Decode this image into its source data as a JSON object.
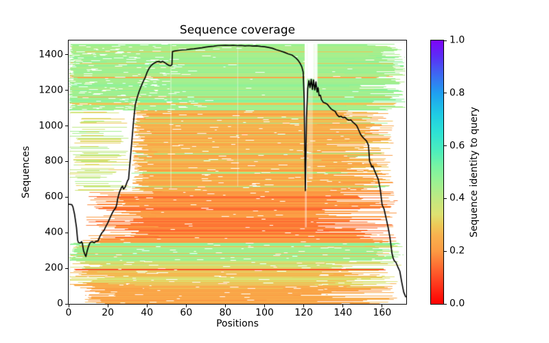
{
  "figure": {
    "title": "Sequence coverage",
    "xlabel": "Positions",
    "ylabel": "Sequences",
    "colorbar_label": "Sequence identity to query",
    "background": "#ffffff",
    "text_color": "#000000"
  },
  "chart_data": {
    "type": "line",
    "subtype": "msa-sequence-coverage-heatmap",
    "title": "Sequence coverage",
    "xlabel": "Positions",
    "ylabel": "Sequences",
    "xlim": [
      0,
      172.3
    ],
    "ylim": [
      0,
      1480
    ],
    "grid": false,
    "legend": "none",
    "n_sequences": 1456,
    "n_positions": 172,
    "xticks": [
      0,
      20,
      40,
      60,
      80,
      100,
      120,
      140,
      160
    ],
    "xtick_labels": [
      "0",
      "20",
      "40",
      "60",
      "80",
      "100",
      "120",
      "140",
      "160"
    ],
    "yticks": [
      0,
      200,
      400,
      600,
      800,
      1000,
      1200,
      1400
    ],
    "ytick_labels": [
      "0",
      "200",
      "400",
      "600",
      "800",
      "1000",
      "1200",
      "1400"
    ],
    "colorbar": {
      "label": "Sequence identity to query",
      "tick_values": [
        0.0,
        0.2,
        0.4,
        0.6,
        0.8,
        1.0
      ],
      "tick_labels": [
        "0.0",
        "0.2",
        "0.4",
        "0.6",
        "0.8",
        "1.0"
      ],
      "stops": [
        [
          0.0,
          "#ff0000"
        ],
        [
          0.08,
          "#ff3c1e"
        ],
        [
          0.16,
          "#fd7b37"
        ],
        [
          0.2,
          "#fc9a43"
        ],
        [
          0.26,
          "#f8b14e"
        ],
        [
          0.3,
          "#ecca58"
        ],
        [
          0.34,
          "#dde272"
        ],
        [
          0.38,
          "#cbe67c"
        ],
        [
          0.46,
          "#9cf192"
        ],
        [
          0.52,
          "#79f3a2"
        ],
        [
          0.58,
          "#4deebc"
        ],
        [
          0.65,
          "#2ee2d4"
        ],
        [
          0.72,
          "#1fcbe4"
        ],
        [
          0.8,
          "#1f9ff0"
        ],
        [
          0.88,
          "#4161f2"
        ],
        [
          0.94,
          "#5b2df6"
        ],
        [
          1.0,
          "#7e04f9"
        ]
      ]
    },
    "coverage_line": {
      "name": "coverage",
      "color": "#000000",
      "width": 1.7,
      "points": [
        [
          0,
          560
        ],
        [
          1.6,
          558
        ],
        [
          2.2,
          545
        ],
        [
          3,
          505
        ],
        [
          4,
          430
        ],
        [
          4.6,
          358
        ],
        [
          5,
          345
        ],
        [
          6,
          342
        ],
        [
          6.6,
          350
        ],
        [
          7,
          340
        ],
        [
          7.6,
          300
        ],
        [
          8.2,
          280
        ],
        [
          8.8,
          266
        ],
        [
          9.4,
          295
        ],
        [
          10,
          318
        ],
        [
          10.5,
          333
        ],
        [
          11,
          345
        ],
        [
          12,
          350
        ],
        [
          13,
          344
        ],
        [
          14,
          352
        ],
        [
          15,
          353
        ],
        [
          16,
          380
        ],
        [
          17,
          400
        ],
        [
          18,
          412
        ],
        [
          19,
          435
        ],
        [
          20,
          455
        ],
        [
          21,
          480
        ],
        [
          22,
          505
        ],
        [
          23,
          525
        ],
        [
          24,
          540
        ],
        [
          24.6,
          560
        ],
        [
          25,
          590
        ],
        [
          26,
          630
        ],
        [
          27,
          655
        ],
        [
          27.5,
          662
        ],
        [
          28,
          645
        ],
        [
          28.6,
          652
        ],
        [
          29,
          660
        ],
        [
          30,
          690
        ],
        [
          30.6,
          702
        ],
        [
          31,
          755
        ],
        [
          32,
          880
        ],
        [
          33,
          1010
        ],
        [
          34,
          1120
        ],
        [
          35,
          1160
        ],
        [
          36,
          1195
        ],
        [
          37,
          1222
        ],
        [
          38,
          1248
        ],
        [
          39,
          1270
        ],
        [
          40,
          1300
        ],
        [
          41,
          1322
        ],
        [
          42,
          1338
        ],
        [
          43,
          1348
        ],
        [
          44,
          1355
        ],
        [
          45,
          1360
        ],
        [
          46,
          1362
        ],
        [
          47,
          1358
        ],
        [
          48,
          1363
        ],
        [
          49,
          1356
        ],
        [
          50,
          1348
        ],
        [
          51,
          1341
        ],
        [
          52,
          1338
        ],
        [
          52.7,
          1343
        ],
        [
          53,
          1418
        ],
        [
          54,
          1421
        ],
        [
          56,
          1424
        ],
        [
          58,
          1427
        ],
        [
          60,
          1428
        ],
        [
          62,
          1431
        ],
        [
          64,
          1433
        ],
        [
          66,
          1436
        ],
        [
          68,
          1439
        ],
        [
          70,
          1443
        ],
        [
          72,
          1446
        ],
        [
          74,
          1448
        ],
        [
          76,
          1451
        ],
        [
          78,
          1452
        ],
        [
          80,
          1453
        ],
        [
          82,
          1452
        ],
        [
          84,
          1453
        ],
        [
          86,
          1451
        ],
        [
          88,
          1452
        ],
        [
          90,
          1450
        ],
        [
          92,
          1451
        ],
        [
          94,
          1449
        ],
        [
          96,
          1450
        ],
        [
          98,
          1447
        ],
        [
          100,
          1445
        ],
        [
          102,
          1441
        ],
        [
          104,
          1436
        ],
        [
          106,
          1428
        ],
        [
          108,
          1421
        ],
        [
          110,
          1414
        ],
        [
          112,
          1405
        ],
        [
          114,
          1398
        ],
        [
          115,
          1390
        ],
        [
          116,
          1381
        ],
        [
          117,
          1370
        ],
        [
          118,
          1354
        ],
        [
          119,
          1332
        ],
        [
          119.7,
          1303
        ],
        [
          120.2,
          1150
        ],
        [
          120.8,
          636
        ],
        [
          121.4,
          1050
        ],
        [
          122,
          1209
        ],
        [
          122.6,
          1254
        ],
        [
          123.2,
          1215
        ],
        [
          123.8,
          1262
        ],
        [
          124.4,
          1205
        ],
        [
          125,
          1258
        ],
        [
          125.6,
          1202
        ],
        [
          126.2,
          1247
        ],
        [
          126.8,
          1190
        ],
        [
          127.3,
          1216
        ],
        [
          127.8,
          1170
        ],
        [
          128.5,
          1172
        ],
        [
          129,
          1148
        ],
        [
          130,
          1132
        ],
        [
          131,
          1128
        ],
        [
          132,
          1122
        ],
        [
          133,
          1108
        ],
        [
          134,
          1095
        ],
        [
          135,
          1088
        ],
        [
          136,
          1082
        ],
        [
          137,
          1062
        ],
        [
          138,
          1052
        ],
        [
          139,
          1054
        ],
        [
          140,
          1046
        ],
        [
          141,
          1049
        ],
        [
          142,
          1038
        ],
        [
          143,
          1032
        ],
        [
          144,
          1034
        ],
        [
          145,
          1022
        ],
        [
          146,
          1012
        ],
        [
          147,
          1002
        ],
        [
          148,
          978
        ],
        [
          149,
          952
        ],
        [
          150,
          938
        ],
        [
          151,
          926
        ],
        [
          152,
          916
        ],
        [
          153,
          892
        ],
        [
          153.6,
          800
        ],
        [
          154.2,
          786
        ],
        [
          154.7,
          768
        ],
        [
          155.2,
          775
        ],
        [
          156,
          752
        ],
        [
          157,
          726
        ],
        [
          158,
          700
        ],
        [
          159,
          646
        ],
        [
          160,
          556
        ],
        [
          161,
          532
        ],
        [
          162,
          482
        ],
        [
          163,
          432
        ],
        [
          164,
          372
        ],
        [
          165,
          285
        ],
        [
          165.6,
          258
        ],
        [
          166.2,
          242
        ],
        [
          167,
          234
        ],
        [
          168,
          208
        ],
        [
          169,
          184
        ],
        [
          170,
          122
        ],
        [
          171,
          66
        ],
        [
          172,
          40
        ]
      ]
    },
    "msa_bands": [
      {
        "rows": [
          0,
          88
        ],
        "identity": [
          0.19,
          0.27
        ],
        "run": [
          1,
          4
        ],
        "xstart": [
          8,
          46
        ],
        "xend": [
          108,
          168
        ],
        "xend2": {
          "p": 0.3,
          "range": [
            88,
            126
          ]
        },
        "gaps": {
          "n": 0.7,
          "w": [
            1,
            5
          ]
        }
      },
      {
        "rows": [
          88,
          193
        ],
        "identity": [
          0.23,
          0.36
        ],
        "run": [
          1,
          4
        ],
        "xstart": [
          0,
          42
        ],
        "xend": [
          95,
          168
        ],
        "gaps": {
          "n": 1.3,
          "w": [
            1,
            6
          ]
        }
      },
      {
        "rows": [
          193,
          199
        ],
        "identity": [
          0.08,
          0.13
        ],
        "run": [
          3,
          6
        ],
        "xstart": [
          2,
          8
        ],
        "xend": [
          148,
          162
        ],
        "gaps": {
          "n": 0.2,
          "w": [
            1,
            2
          ]
        }
      },
      {
        "rows": [
          199,
          246
        ],
        "identity": [
          0.28,
          0.46
        ],
        "run": [
          1,
          3
        ],
        "xstart": [
          0,
          30
        ],
        "xend": [
          100,
          170
        ],
        "gaps": {
          "n": 1.5,
          "w": [
            1,
            5
          ]
        }
      },
      {
        "rows": [
          246,
          345
        ],
        "identity": [
          0.4,
          0.5
        ],
        "alt": {
          "p": 0.13,
          "identity": [
            0.24,
            0.32
          ]
        },
        "run": [
          2,
          6
        ],
        "xstart": [
          0,
          10
        ],
        "xend": [
          132,
          171
        ],
        "gaps": {
          "n": 1.8,
          "w": [
            1,
            4
          ]
        }
      },
      {
        "rows": [
          345,
          372
        ],
        "identity": [
          0.17,
          0.26
        ],
        "run": [
          1,
          4
        ],
        "xstart": [
          4,
          40
        ],
        "xend": [
          112,
          168
        ],
        "gaps": {
          "n": 0.8,
          "w": [
            1,
            4
          ]
        }
      },
      {
        "rows": [
          372,
          640
        ],
        "identity": [
          0.13,
          0.23
        ],
        "run": [
          2,
          7
        ],
        "xstart": [
          34,
          48
        ],
        "xstart2": {
          "p": 0.35,
          "range": [
            8,
            34
          ]
        },
        "xend": [
          116,
          134
        ],
        "xend2": {
          "p": 0.4,
          "range": [
            134,
            168
          ]
        },
        "gaps": {
          "n": 0.7,
          "w": [
            1,
            4
          ]
        }
      },
      {
        "rows": [
          640,
          1090
        ],
        "identity": [
          0.2,
          0.3
        ],
        "alt": {
          "p": 0.1,
          "identity": [
            0.4,
            0.48
          ]
        },
        "run": [
          2,
          6
        ],
        "xstart": [
          32,
          46
        ],
        "xend": [
          118,
          166
        ],
        "gaps": {
          "n": 1.0,
          "w": [
            1,
            5
          ]
        },
        "frag": {
          "p": 0.16,
          "x0": [
            0,
            10
          ],
          "x1": [
            14,
            32
          ],
          "identity": [
            0.28,
            0.46
          ]
        }
      },
      {
        "rows": [
          1090,
          1462
        ],
        "identity": [
          0.41,
          0.5
        ],
        "alt": {
          "p": 0.17,
          "identity": [
            0.22,
            0.31
          ]
        },
        "run": [
          2,
          7
        ],
        "xstart": [
          0,
          5
        ],
        "xstart2": {
          "p": 0.22,
          "range": [
            5,
            38
          ]
        },
        "xend": [
          140,
          172
        ],
        "gaps": {
          "n": 2.0,
          "w": [
            1,
            5
          ],
          "left_bias": 0.7
        }
      }
    ],
    "gap_columns": [
      {
        "x": [
          120.45,
          121.6
        ],
        "rows": [
          645,
          null
        ],
        "alpha": 1
      },
      {
        "x": [
          121.6,
          125.2
        ],
        "rows": [
          1265,
          null
        ],
        "alpha": 1
      },
      {
        "x": [
          125.2,
          127.0
        ],
        "rows": [
          1225,
          null
        ],
        "alpha": 0.9
      },
      {
        "x": [
          120.6,
          121.5
        ],
        "rows": [
          430,
          645
        ],
        "alpha": 0.45
      },
      {
        "x": [
          122.0,
          124.6
        ],
        "rows": [
          700,
          1265
        ],
        "alpha": 0.3
      },
      {
        "x": [
          52.0,
          52.4
        ],
        "rows": [
          650,
          null
        ],
        "alpha": 0.55
      },
      {
        "x": [
          86.1,
          86.5
        ],
        "rows": [
          660,
          null
        ],
        "alpha": 0.4
      }
    ],
    "seed": 11
  }
}
